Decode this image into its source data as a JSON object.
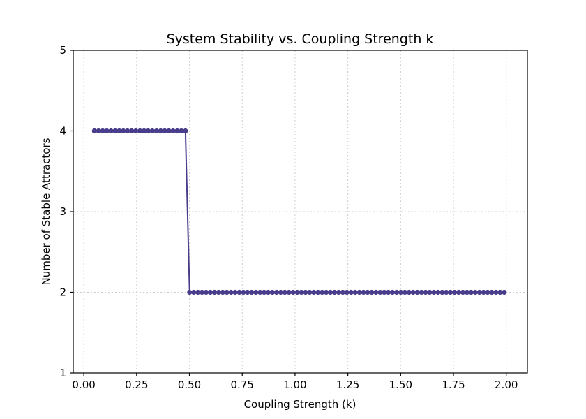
{
  "chart_data": {
    "type": "line",
    "title": "System Stability vs. Coupling Strength k",
    "xlabel": "Coupling Strength (k)",
    "ylabel": "Number of Stable Attractors",
    "xlim": [
      -0.05,
      2.1
    ],
    "ylim": [
      1,
      5
    ],
    "xticks": [
      0.0,
      0.25,
      0.5,
      0.75,
      1.0,
      1.25,
      1.5,
      1.75,
      2.0
    ],
    "xtick_labels": [
      "0.00",
      "0.25",
      "0.50",
      "0.75",
      "1.00",
      "1.25",
      "1.50",
      "1.75",
      "2.00"
    ],
    "yticks": [
      1,
      2,
      3,
      4,
      5
    ],
    "ytick_labels": [
      "1",
      "2",
      "3",
      "4",
      "5"
    ],
    "grid": true,
    "series_color": "#483d8b",
    "k_start": 0.05,
    "k_step": 0.0196,
    "point_count": 100,
    "transition_k": 0.5,
    "value_below": 4,
    "value_above": 2
  }
}
